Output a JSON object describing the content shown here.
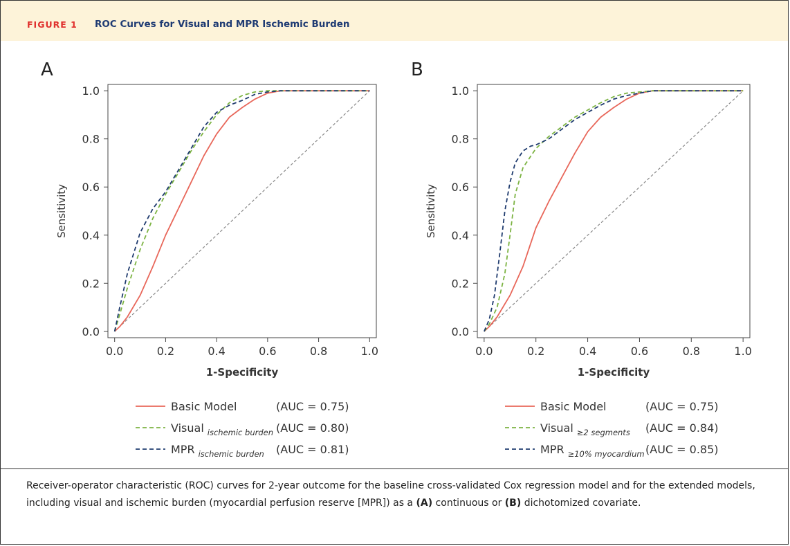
{
  "figure": {
    "label": "FIGURE 1",
    "title": "ROC Curves for Visual and MPR Ischemic Burden"
  },
  "caption": {
    "text_1": "Receiver-operator characteristic (ROC) curves for 2-year outcome for the baseline cross-validated Cox regression model and for the extended models, including visual and ischemic burden (myocardial perfusion reserve [MPR]) as a ",
    "bold_a": "(A)",
    "text_2": " continuous or ",
    "bold_b": "(B)",
    "text_3": " dichotomized covariate."
  },
  "colors": {
    "basic": "#e8675a",
    "visual": "#7cb342",
    "mpr": "#1f3b6e",
    "reference": "#888888",
    "header_bg": "#fdf3d9",
    "figure_label": "#e0312e",
    "figure_title": "#1f3b73"
  },
  "chart_data": [
    {
      "panel": "A",
      "type": "line",
      "xlabel": "1-Specificity",
      "ylabel": "Sensitivity",
      "xlim": [
        0,
        1
      ],
      "ylim": [
        0,
        1
      ],
      "xticks": [
        "0.0",
        "0.2",
        "0.4",
        "0.6",
        "0.8",
        "1.0"
      ],
      "yticks": [
        "0.0",
        "0.2",
        "0.4",
        "0.6",
        "0.8",
        "1.0"
      ],
      "grid": false,
      "legend_position": "bottom",
      "series": [
        {
          "key": "basic",
          "name": "Basic Model",
          "subscript": "",
          "auc": "(AUC = 0.75)",
          "style": "solid",
          "x": [
            0,
            0.02,
            0.05,
            0.1,
            0.15,
            0.2,
            0.25,
            0.3,
            0.35,
            0.4,
            0.45,
            0.5,
            0.55,
            0.6,
            0.65,
            0.7,
            0.8,
            0.9,
            1.0
          ],
          "y": [
            0,
            0.02,
            0.06,
            0.15,
            0.27,
            0.4,
            0.51,
            0.62,
            0.73,
            0.82,
            0.89,
            0.93,
            0.965,
            0.99,
            1.0,
            1.0,
            1.0,
            1.0,
            1.0
          ]
        },
        {
          "key": "visual",
          "name": "Visual",
          "subscript": "ischemic burden",
          "auc": "(AUC = 0.80)",
          "style": "dashed",
          "x": [
            0,
            0.02,
            0.05,
            0.1,
            0.15,
            0.2,
            0.25,
            0.3,
            0.35,
            0.4,
            0.45,
            0.5,
            0.55,
            0.6,
            0.65,
            0.7,
            0.8,
            0.9,
            1.0
          ],
          "y": [
            0,
            0.07,
            0.18,
            0.34,
            0.47,
            0.57,
            0.66,
            0.75,
            0.83,
            0.9,
            0.95,
            0.98,
            0.995,
            1.0,
            1.0,
            1.0,
            1.0,
            1.0,
            1.0
          ]
        },
        {
          "key": "mpr",
          "name": "MPR",
          "subscript": "ischemic burden",
          "auc": "(AUC = 0.81)",
          "style": "dashed",
          "x": [
            0,
            0.02,
            0.05,
            0.1,
            0.15,
            0.2,
            0.25,
            0.3,
            0.35,
            0.4,
            0.45,
            0.5,
            0.55,
            0.6,
            0.65,
            0.7,
            0.8,
            0.9,
            1.0
          ],
          "y": [
            0,
            0.1,
            0.24,
            0.41,
            0.51,
            0.58,
            0.67,
            0.76,
            0.85,
            0.91,
            0.94,
            0.96,
            0.985,
            0.995,
            1.0,
            1.0,
            1.0,
            1.0,
            1.0
          ]
        },
        {
          "key": "reference",
          "name": "",
          "subscript": "",
          "auc": "",
          "style": "dotted",
          "x": [
            0,
            1
          ],
          "y": [
            0,
            1
          ]
        }
      ]
    },
    {
      "panel": "B",
      "type": "line",
      "xlabel": "1-Specificity",
      "ylabel": "Sensitivity",
      "xlim": [
        0,
        1
      ],
      "ylim": [
        0,
        1
      ],
      "xticks": [
        "0.0",
        "0.2",
        "0.4",
        "0.6",
        "0.8",
        "1.0"
      ],
      "yticks": [
        "0.0",
        "0.2",
        "0.4",
        "0.6",
        "0.8",
        "1.0"
      ],
      "grid": false,
      "legend_position": "bottom",
      "series": [
        {
          "key": "basic",
          "name": "Basic Model",
          "subscript": "",
          "auc": "(AUC = 0.75)",
          "style": "solid",
          "x": [
            0,
            0.02,
            0.05,
            0.1,
            0.15,
            0.2,
            0.25,
            0.3,
            0.35,
            0.4,
            0.45,
            0.5,
            0.55,
            0.6,
            0.65,
            0.7,
            0.8,
            0.9,
            1.0
          ],
          "y": [
            0,
            0.02,
            0.06,
            0.15,
            0.27,
            0.43,
            0.54,
            0.64,
            0.74,
            0.83,
            0.89,
            0.93,
            0.965,
            0.99,
            1.0,
            1.0,
            1.0,
            1.0,
            1.0
          ]
        },
        {
          "key": "visual",
          "name": "Visual",
          "subscript": "≥2 segments",
          "auc": "(AUC = 0.84)",
          "style": "dashed",
          "x": [
            0,
            0.02,
            0.05,
            0.08,
            0.1,
            0.12,
            0.15,
            0.2,
            0.25,
            0.3,
            0.35,
            0.4,
            0.45,
            0.5,
            0.55,
            0.6,
            0.65,
            0.7,
            0.8,
            0.9,
            1.0
          ],
          "y": [
            0,
            0.03,
            0.1,
            0.24,
            0.4,
            0.57,
            0.68,
            0.76,
            0.81,
            0.85,
            0.89,
            0.92,
            0.95,
            0.975,
            0.99,
            0.995,
            1.0,
            1.0,
            1.0,
            1.0,
            1.0
          ]
        },
        {
          "key": "mpr",
          "name": "MPR",
          "subscript": "≥10% myocardium",
          "auc": "(AUC = 0.85)",
          "style": "dashed",
          "x": [
            0,
            0.02,
            0.04,
            0.06,
            0.08,
            0.1,
            0.12,
            0.15,
            0.18,
            0.2,
            0.25,
            0.3,
            0.35,
            0.4,
            0.45,
            0.5,
            0.55,
            0.6,
            0.65,
            0.7,
            0.8,
            0.9,
            1.0
          ],
          "y": [
            0,
            0.05,
            0.15,
            0.32,
            0.5,
            0.62,
            0.7,
            0.75,
            0.77,
            0.775,
            0.8,
            0.84,
            0.88,
            0.91,
            0.94,
            0.965,
            0.98,
            0.99,
            1.0,
            1.0,
            1.0,
            1.0,
            1.0
          ]
        },
        {
          "key": "reference",
          "name": "",
          "subscript": "",
          "auc": "",
          "style": "dotted",
          "x": [
            0,
            1
          ],
          "y": [
            0,
            1
          ]
        }
      ]
    }
  ]
}
